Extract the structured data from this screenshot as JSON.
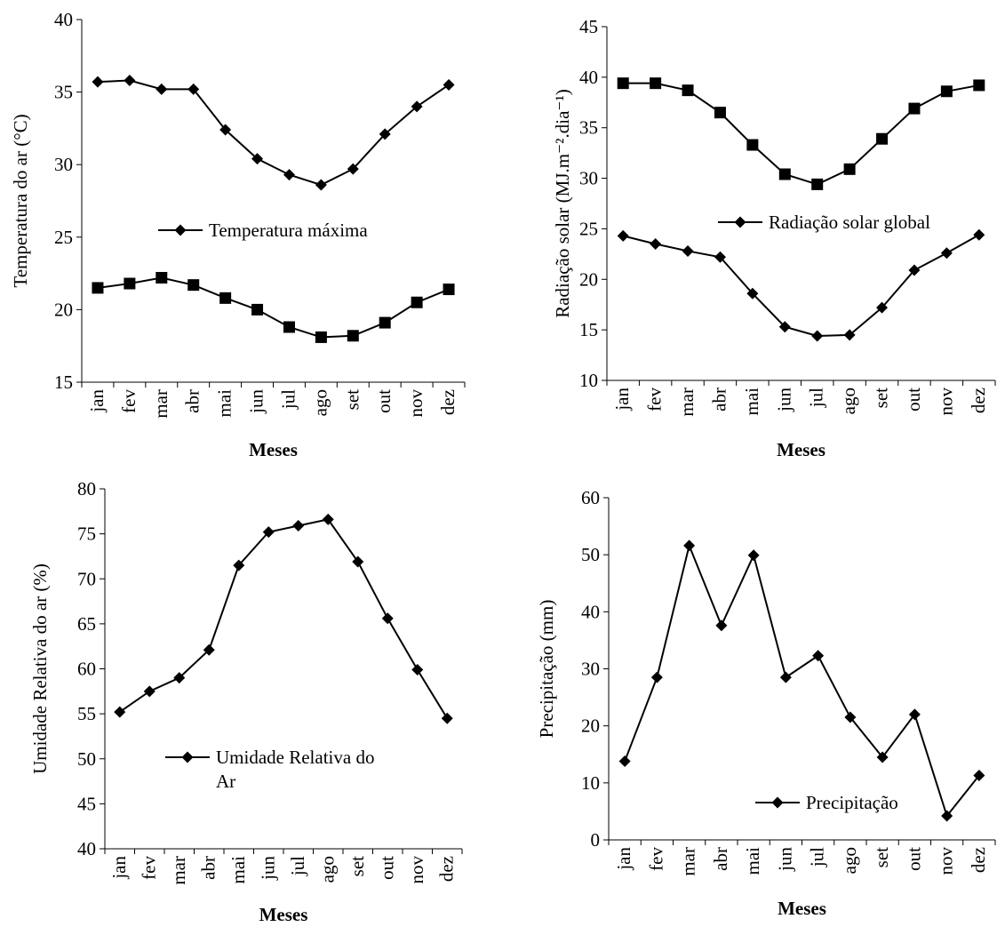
{
  "chart_data": [
    {
      "type": "line",
      "categories": [
        "jan",
        "fev",
        "mar",
        "abr",
        "mai",
        "jun",
        "jul",
        "ago",
        "set",
        "out",
        "nov",
        "dez"
      ],
      "ylabel": "Temperatura do ar (°C)",
      "xlabel": "Meses",
      "ylim": [
        15,
        40
      ],
      "yticks": [
        15,
        20,
        25,
        30,
        35,
        40
      ],
      "legend_position": "center",
      "series": [
        {
          "name": "Temperatura máxima",
          "marker": "diamond",
          "values": [
            35.7,
            35.8,
            35.2,
            35.2,
            32.4,
            30.4,
            29.3,
            28.6,
            29.7,
            32.1,
            34.0,
            35.5
          ]
        },
        {
          "marker": "square",
          "values": [
            21.5,
            21.8,
            22.2,
            21.7,
            20.8,
            20.0,
            18.8,
            18.1,
            18.2,
            19.1,
            20.5,
            21.4
          ]
        }
      ]
    },
    {
      "type": "line",
      "categories": [
        "jan",
        "fev",
        "mar",
        "abr",
        "mai",
        "jun",
        "jul",
        "ago",
        "set",
        "out",
        "nov",
        "dez"
      ],
      "ylabel": "Radiação solar (MJ.m⁻².dia⁻¹)",
      "xlabel": "Meses",
      "ylim": [
        10,
        45
      ],
      "yticks": [
        10,
        15,
        20,
        25,
        30,
        35,
        40,
        45
      ],
      "legend_position": "center-right",
      "series": [
        {
          "marker": "square",
          "values": [
            39.4,
            39.4,
            38.7,
            36.5,
            33.3,
            30.4,
            29.4,
            30.9,
            33.9,
            36.9,
            38.6,
            39.2
          ]
        },
        {
          "name": "Radiação solar global",
          "marker": "diamond",
          "values": [
            24.3,
            23.5,
            22.8,
            22.2,
            18.6,
            15.3,
            14.4,
            14.5,
            17.2,
            20.9,
            22.6,
            24.4
          ]
        }
      ]
    },
    {
      "type": "line",
      "categories": [
        "jan",
        "fev",
        "mar",
        "abr",
        "mai",
        "jun",
        "jul",
        "ago",
        "set",
        "out",
        "nov",
        "dez"
      ],
      "ylabel": "Umidade Relativa do ar (%)",
      "xlabel": "Meses",
      "ylim": [
        40,
        80
      ],
      "yticks": [
        40,
        45,
        50,
        55,
        60,
        65,
        70,
        75,
        80
      ],
      "legend_position": "center",
      "series": [
        {
          "name": "Umidade Relativa do Ar",
          "name_lines": [
            "Umidade Relativa do",
            "Ar"
          ],
          "marker": "diamond",
          "values": [
            55.2,
            57.5,
            59.0,
            62.1,
            71.5,
            75.2,
            75.9,
            76.6,
            71.9,
            65.6,
            59.9,
            54.5
          ]
        }
      ]
    },
    {
      "type": "line",
      "categories": [
        "jan",
        "fev",
        "mar",
        "abr",
        "mai",
        "jun",
        "jul",
        "ago",
        "set",
        "out",
        "nov",
        "dez"
      ],
      "ylabel": "Precipitação (mm)",
      "xlabel": "Meses",
      "ylim": [
        0,
        60
      ],
      "yticks": [
        0,
        10,
        20,
        30,
        40,
        50,
        60
      ],
      "legend_position": "bottom-right",
      "series": [
        {
          "name": "Precipitação",
          "marker": "diamond",
          "values": [
            13.8,
            28.5,
            51.6,
            37.6,
            49.9,
            28.5,
            32.3,
            21.5,
            14.5,
            22.0,
            4.2,
            11.3
          ]
        }
      ]
    }
  ]
}
